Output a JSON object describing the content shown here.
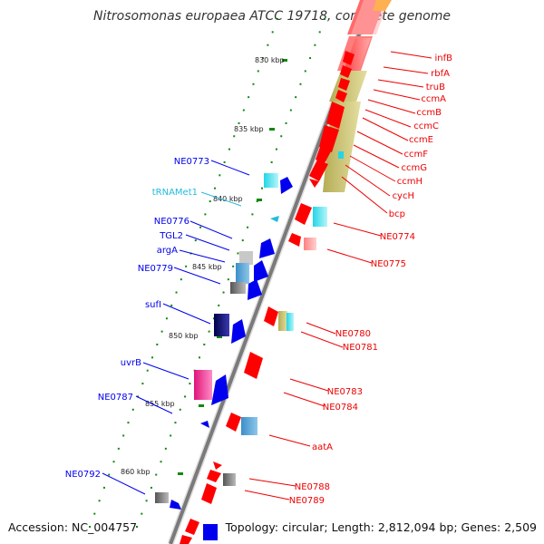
{
  "title": "Nitrosomonas europaea ATCC 19718, complete genome",
  "footer": {
    "accession": "Accession: NC_004757",
    "summary": "Topology: circular; Length: 2,812,094 bp; Genes: 2,509"
  },
  "scale_labels": [
    "830 kbp",
    "835 kbp",
    "840 kbp",
    "845 kbp",
    "850 kbp",
    "855 kbp",
    "860 kbp"
  ],
  "left_gene_labels": [
    "NE0773",
    "tRNAMet1",
    "NE0776",
    "TGL2",
    "argA",
    "NE0779",
    "sufI",
    "uvrB",
    "NE0787",
    "NE0792"
  ],
  "right_gene_labels": [
    "infB",
    "rbfA",
    "truB",
    "ccmA",
    "ccmB",
    "ccmC",
    "ccmE",
    "ccmF",
    "ccmG",
    "ccmH",
    "cycH",
    "bcp",
    "NE0774",
    "NE0775",
    "NE0780",
    "NE0781",
    "NE0783",
    "NE0784",
    "aatA",
    "NE0788",
    "NE0789"
  ],
  "colors": {
    "forward_strand": "#0000ee",
    "reverse_strand": "#ee0000",
    "trna": "#22bbdd",
    "backbone": "#888888",
    "scale_dots": "#118811"
  }
}
